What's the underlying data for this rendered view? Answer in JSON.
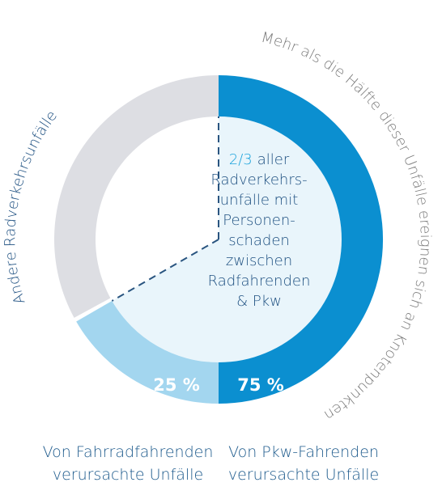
{
  "chart_data": {
    "type": "donut",
    "categories": [
      [
        "Von Pkw-Fahrenden",
        "verursachte Unfälle"
      ],
      [
        "Von Fahrradfahrenden",
        "verursachte Unfälle"
      ]
    ],
    "values": [
      75,
      25
    ],
    "value_labels": [
      "75 %",
      "25 %"
    ],
    "colors": [
      "#0b8fd0",
      "#a3d6ef"
    ],
    "share_of_total": {
      "value": 0.6667,
      "label": "2/3"
    },
    "share_fill": "#e9f5fb",
    "rest_label": "Andere Radverkehrsunfälle",
    "rest_color": "#dddee3",
    "center_note": [
      "aller",
      "Radverkehrs-",
      "unfälle mit",
      "Personen-",
      "schaden",
      "zwischen",
      "Radfahrenden",
      "& Pkw"
    ],
    "outer_note": "Mehr als die Hälfte dieser Unfälle ereignen sich an Knotenpunkten"
  }
}
